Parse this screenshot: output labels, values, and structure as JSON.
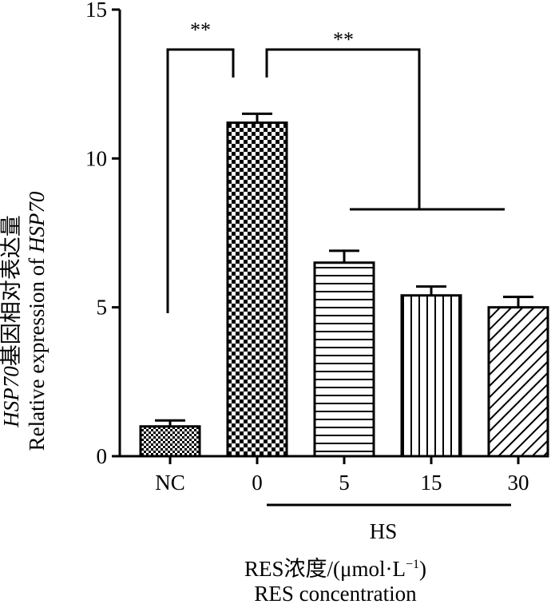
{
  "chart_data": {
    "type": "bar",
    "categories": [
      "NC",
      "0",
      "5",
      "15",
      "30"
    ],
    "values": [
      1.0,
      11.2,
      6.5,
      5.4,
      5.0
    ],
    "errors": [
      0.2,
      0.3,
      0.4,
      0.3,
      0.35
    ],
    "ylim": [
      0,
      15
    ],
    "yticks": [
      0,
      5,
      10,
      15
    ],
    "ylabel_zh_gene": "HSP70",
    "ylabel_zh": "基因相对表达量",
    "ylabel_en": "Relative expression of ",
    "ylabel_en_gene": "HSP70",
    "group_label": "HS",
    "xlabel_zh_main": "RES浓度/(μmol·L",
    "xlabel_zh_sup": "−1",
    "xlabel_zh_end": ")",
    "xlabel_en": "RES concentration",
    "significance": [
      "**",
      "**"
    ],
    "patterns": [
      "small-check",
      "large-check",
      "horizontal-lines",
      "vertical-lines",
      "diagonal-lines"
    ]
  }
}
